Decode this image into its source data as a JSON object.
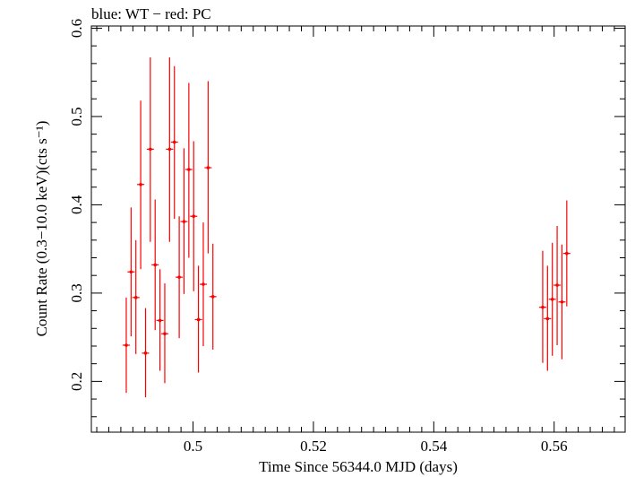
{
  "chart_data": {
    "type": "scatter",
    "title": "blue: WT − red: PC",
    "xlabel": "Time Since 56344.0 MJD (days)",
    "ylabel": "Count Rate (0.3−10.0 keV)(cts s⁻¹)",
    "xlim": [
      0.4831,
      0.5718
    ],
    "ylim": [
      0.1425,
      0.6025
    ],
    "x_ticks": [
      0.5,
      0.52,
      0.54,
      0.56
    ],
    "x_tick_labels": [
      "0.5",
      "0.52",
      "0.54",
      "0.56"
    ],
    "y_ticks": [
      0.2,
      0.3,
      0.4,
      0.5,
      0.6
    ],
    "y_tick_labels": [
      "0.2",
      "0.3",
      "0.4",
      "0.5",
      "0.6"
    ],
    "grid": false,
    "series": [
      {
        "color": "#ff0000",
        "points": [
          {
            "x": 0.4889,
            "y": 0.241,
            "ylo": 0.187,
            "yhi": 0.295
          },
          {
            "x": 0.4897,
            "y": 0.324,
            "ylo": 0.251,
            "yhi": 0.397
          },
          {
            "x": 0.4905,
            "y": 0.295,
            "ylo": 0.231,
            "yhi": 0.36
          },
          {
            "x": 0.4913,
            "y": 0.423,
            "ylo": 0.327,
            "yhi": 0.518
          },
          {
            "x": 0.4921,
            "y": 0.232,
            "ylo": 0.182,
            "yhi": 0.283
          },
          {
            "x": 0.4929,
            "y": 0.463,
            "ylo": 0.358,
            "yhi": 0.567
          },
          {
            "x": 0.4937,
            "y": 0.332,
            "ylo": 0.258,
            "yhi": 0.406
          },
          {
            "x": 0.4945,
            "y": 0.269,
            "ylo": 0.212,
            "yhi": 0.327
          },
          {
            "x": 0.4953,
            "y": 0.254,
            "ylo": 0.198,
            "yhi": 0.311
          },
          {
            "x": 0.4961,
            "y": 0.463,
            "ylo": 0.358,
            "yhi": 0.567
          },
          {
            "x": 0.4969,
            "y": 0.471,
            "ylo": 0.384,
            "yhi": 0.557
          },
          {
            "x": 0.4977,
            "y": 0.318,
            "ylo": 0.249,
            "yhi": 0.387
          },
          {
            "x": 0.4985,
            "y": 0.381,
            "ylo": 0.299,
            "yhi": 0.464
          },
          {
            "x": 0.4993,
            "y": 0.44,
            "ylo": 0.34,
            "yhi": 0.538
          },
          {
            "x": 0.5001,
            "y": 0.387,
            "ylo": 0.302,
            "yhi": 0.472
          },
          {
            "x": 0.5009,
            "y": 0.27,
            "ylo": 0.21,
            "yhi": 0.331
          },
          {
            "x": 0.5017,
            "y": 0.31,
            "ylo": 0.24,
            "yhi": 0.38
          },
          {
            "x": 0.5025,
            "y": 0.442,
            "ylo": 0.345,
            "yhi": 0.54
          },
          {
            "x": 0.5033,
            "y": 0.296,
            "ylo": 0.236,
            "yhi": 0.356
          },
          {
            "x": 0.5581,
            "y": 0.284,
            "ylo": 0.221,
            "yhi": 0.348
          },
          {
            "x": 0.5589,
            "y": 0.271,
            "ylo": 0.212,
            "yhi": 0.331
          },
          {
            "x": 0.5597,
            "y": 0.293,
            "ylo": 0.229,
            "yhi": 0.357
          },
          {
            "x": 0.5605,
            "y": 0.309,
            "ylo": 0.241,
            "yhi": 0.376
          },
          {
            "x": 0.5613,
            "y": 0.29,
            "ylo": 0.225,
            "yhi": 0.355
          },
          {
            "x": 0.5621,
            "y": 0.345,
            "ylo": 0.285,
            "yhi": 0.405
          }
        ]
      }
    ]
  }
}
